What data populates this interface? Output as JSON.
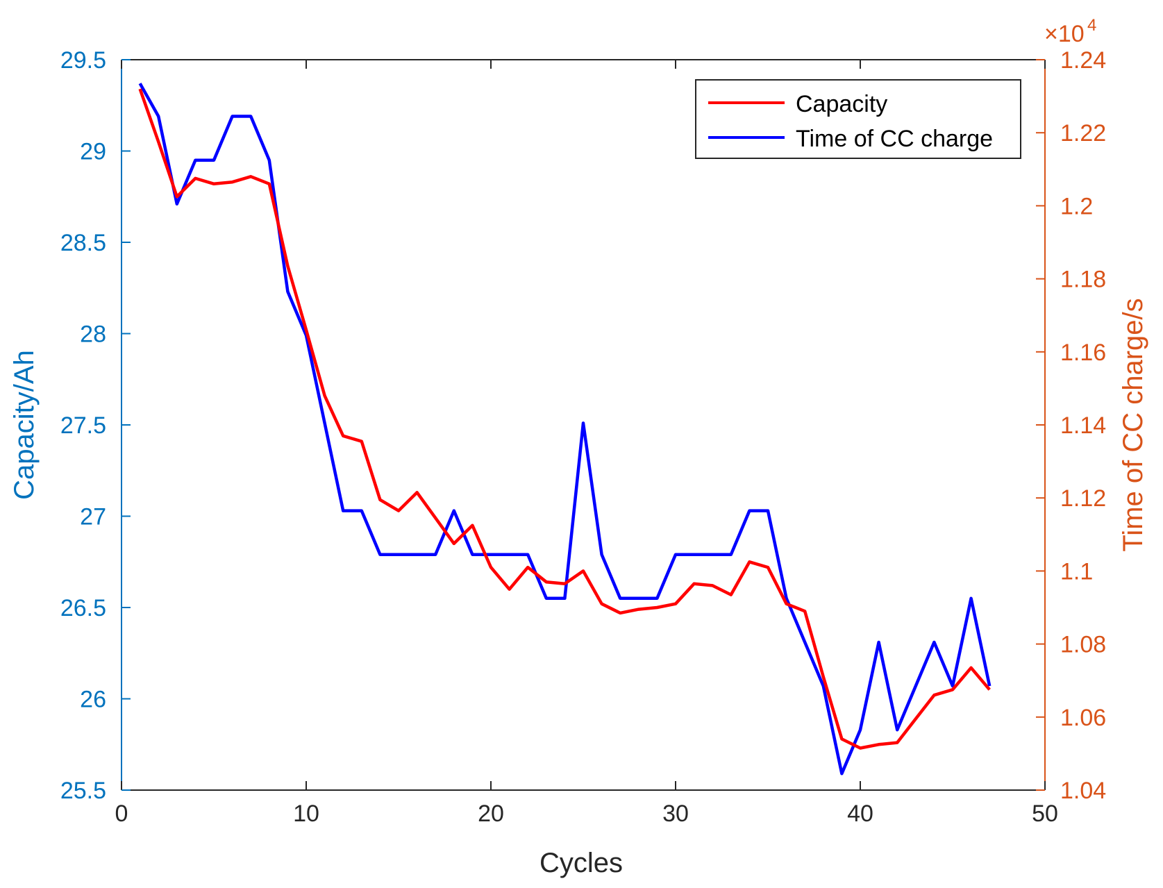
{
  "chart_data": {
    "type": "line",
    "xlabel": "Cycles",
    "ylabel_left": "Capacity/Ah",
    "ylabel_right": "Time of CC charge/s",
    "right_axis_multiplier": "×10",
    "right_axis_exponent": "4",
    "xlim": [
      0,
      50
    ],
    "ylim_left": [
      25.5,
      29.5
    ],
    "ylim_right": [
      1.04,
      1.24
    ],
    "x_ticks": [
      "0",
      "10",
      "20",
      "30",
      "40",
      "50"
    ],
    "y_left_ticks": [
      "25.5",
      "26",
      "26.5",
      "27",
      "27.5",
      "28",
      "28.5",
      "29",
      "29.5"
    ],
    "y_right_ticks": [
      "1.04",
      "1.06",
      "1.08",
      "1.1",
      "1.12",
      "1.14",
      "1.16",
      "1.18",
      "1.2",
      "1.22",
      "1.24"
    ],
    "legend_position": "top-right",
    "colors": {
      "left_axis": "#0072BD",
      "right_axis": "#D95319",
      "capacity": "#FF0000",
      "cc_time": "#0000FF"
    },
    "x": [
      1,
      2,
      3,
      4,
      5,
      6,
      7,
      8,
      9,
      10,
      11,
      12,
      13,
      14,
      15,
      16,
      17,
      18,
      19,
      20,
      21,
      22,
      23,
      24,
      25,
      26,
      27,
      28,
      29,
      30,
      31,
      32,
      33,
      34,
      35,
      36,
      37,
      38,
      39,
      40,
      41,
      42,
      43,
      44,
      45,
      46,
      47
    ],
    "series": [
      {
        "name": "Capacity",
        "axis": "left",
        "values": [
          29.34,
          29.05,
          28.75,
          28.85,
          28.82,
          28.83,
          28.86,
          28.82,
          28.37,
          28.02,
          27.66,
          27.44,
          27.41,
          27.09,
          27.03,
          27.13,
          26.99,
          26.85,
          26.95,
          26.72,
          26.6,
          26.72,
          26.64,
          26.63,
          26.7,
          26.52,
          26.47,
          26.49,
          26.5,
          26.52,
          26.63,
          26.62,
          26.57,
          26.75,
          26.72,
          26.52,
          26.48,
          26.12,
          25.78,
          25.73,
          25.75,
          25.76,
          25.89,
          26.02,
          26.05,
          26.17,
          26.05
        ]
      },
      {
        "name": "Time of CC charge",
        "axis": "right",
        "values": [
          1.2335,
          1.2245,
          1.2005,
          1.2125,
          1.2125,
          1.2245,
          1.2245,
          1.2125,
          1.1765,
          1.1645,
          1.1405,
          1.1165,
          1.1165,
          1.1045,
          1.1045,
          1.1045,
          1.1045,
          1.1165,
          1.1045,
          1.1045,
          1.1045,
          1.1045,
          1.0925,
          1.0925,
          1.1405,
          1.1045,
          1.0925,
          1.0925,
          1.0925,
          1.1045,
          1.1045,
          1.1045,
          1.1045,
          1.1165,
          1.1165,
          1.0925,
          1.0805,
          1.0685,
          1.0445,
          1.0565,
          1.0805,
          1.0565,
          1.0685,
          1.0805,
          1.0685,
          1.0925,
          1.0685
        ]
      }
    ]
  }
}
